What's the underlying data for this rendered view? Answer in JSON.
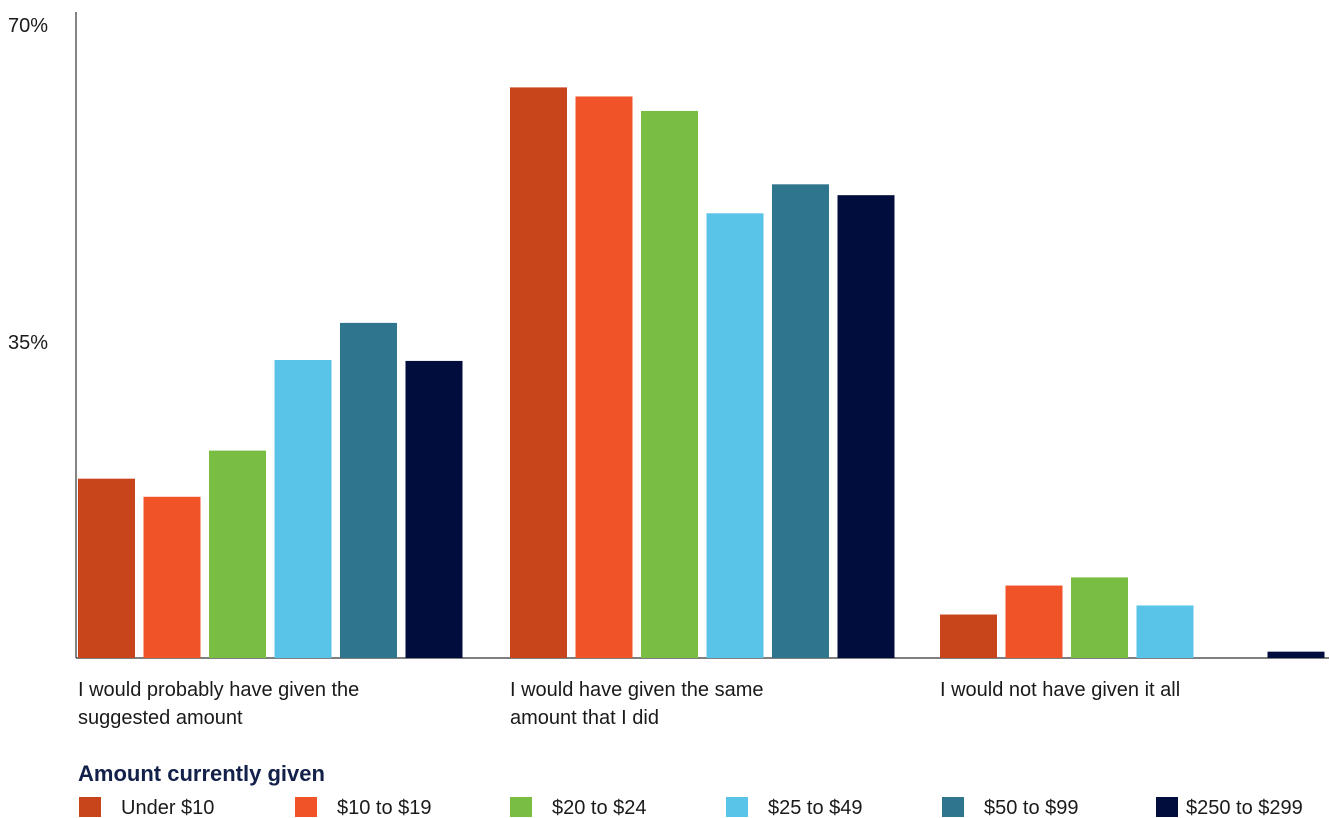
{
  "chart_data": {
    "type": "bar",
    "title": "",
    "xlabel": "",
    "ylabel": "",
    "ylim": [
      0,
      70
    ],
    "yticks": [
      "70%",
      "35%"
    ],
    "ytick_values": [
      70,
      35
    ],
    "grid": false,
    "legend_title": "Amount currently given",
    "legend_position": "bottom",
    "categories": [
      [
        "I would probably have given the",
        "suggested amount"
      ],
      [
        "I would have given the same",
        "amount that I did"
      ],
      [
        "I would not have given it all"
      ]
    ],
    "series": [
      {
        "name": "Under $10",
        "color": "#c8441b",
        "values": [
          19.8,
          63.0,
          4.8
        ]
      },
      {
        "name": "$10 to $19",
        "color": "#f05327",
        "values": [
          17.8,
          62.0,
          8.0
        ]
      },
      {
        "name": "$20 to $24",
        "color": "#7abd43",
        "values": [
          22.9,
          60.4,
          8.9
        ]
      },
      {
        "name": "$25 to $49",
        "color": "#5ac3e8",
        "values": [
          32.9,
          49.1,
          5.8
        ]
      },
      {
        "name": "$50 to $99",
        "color": "#2f758d",
        "values": [
          37.0,
          52.3,
          0
        ]
      },
      {
        "name": "$250 to $299",
        "color": "#000d3d",
        "values": [
          32.8,
          51.1,
          0.7
        ]
      }
    ]
  }
}
